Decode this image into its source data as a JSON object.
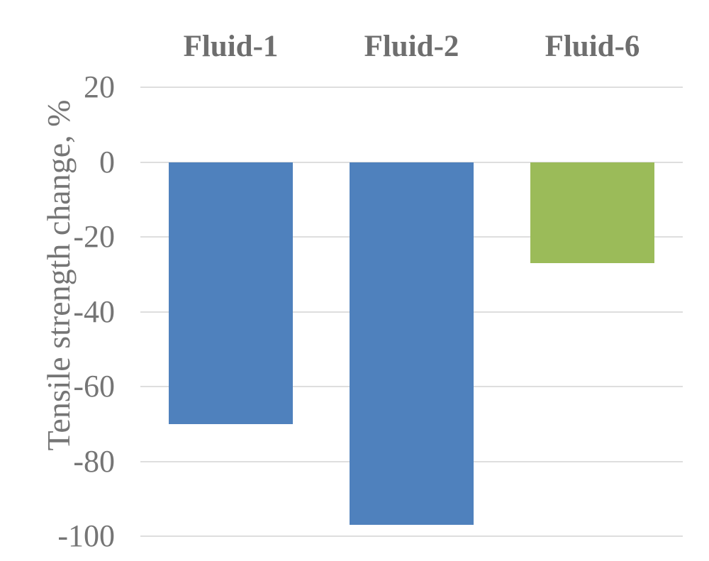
{
  "chart_data": {
    "type": "bar",
    "categories": [
      "Fluid-1",
      "Fluid-2",
      "Fluid-6"
    ],
    "values": [
      -70,
      -97,
      -27
    ],
    "bar_colors": [
      "#4F81BD",
      "#4F81BD",
      "#9BBB59"
    ],
    "title": "",
    "xlabel": "",
    "ylabel": "Tensile strength change, %",
    "yticks": [
      20,
      0,
      -20,
      -40,
      -60,
      -80,
      -100
    ],
    "ylim": [
      -100,
      20
    ],
    "grid": true,
    "legend": "none",
    "category_label_position": "above-plot",
    "colors": {
      "gridline": "#DEDEDE",
      "tick_text": "#757575",
      "axis_title_text": "#757575",
      "category_header_text": "#6E6E6E",
      "background": "#FFFFFF"
    }
  }
}
